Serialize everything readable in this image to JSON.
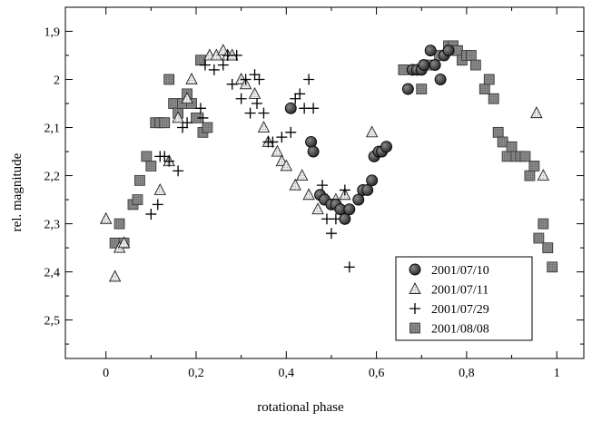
{
  "chart_data": {
    "type": "scatter",
    "title": "",
    "xlabel": "rotational phase",
    "ylabel": "rel. magnitude",
    "xlim": [
      -0.09,
      1.06
    ],
    "ylim": [
      1.85,
      2.58
    ],
    "y_inverted": true,
    "decimal_separator": ",",
    "x_ticks": [
      {
        "value": 0,
        "label": "0"
      },
      {
        "value": 0.2,
        "label": "0,2"
      },
      {
        "value": 0.4,
        "label": "0,4"
      },
      {
        "value": 0.6,
        "label": "0,6"
      },
      {
        "value": 0.8,
        "label": "0,8"
      },
      {
        "value": 1.0,
        "label": "1"
      }
    ],
    "y_ticks": [
      {
        "value": 1.9,
        "label": "1,9"
      },
      {
        "value": 2.0,
        "label": "2"
      },
      {
        "value": 2.1,
        "label": "2,1"
      },
      {
        "value": 2.2,
        "label": "2,2"
      },
      {
        "value": 2.3,
        "label": "2,3"
      },
      {
        "value": 2.4,
        "label": "2,4"
      },
      {
        "value": 2.5,
        "label": "2,5"
      }
    ],
    "grid": false,
    "legend_position": "bottom-right",
    "series": [
      {
        "name": "2001/07/10",
        "marker": "circle",
        "points": [
          [
            0.41,
            2.06
          ],
          [
            0.455,
            2.13
          ],
          [
            0.46,
            2.15
          ],
          [
            0.475,
            2.24
          ],
          [
            0.485,
            2.25
          ],
          [
            0.5,
            2.26
          ],
          [
            0.51,
            2.26
          ],
          [
            0.52,
            2.27
          ],
          [
            0.53,
            2.29
          ],
          [
            0.54,
            2.27
          ],
          [
            0.56,
            2.25
          ],
          [
            0.57,
            2.23
          ],
          [
            0.58,
            2.23
          ],
          [
            0.59,
            2.21
          ],
          [
            0.595,
            2.16
          ],
          [
            0.605,
            2.15
          ],
          [
            0.612,
            2.15
          ],
          [
            0.622,
            2.14
          ],
          [
            0.67,
            2.02
          ],
          [
            0.68,
            1.98
          ],
          [
            0.69,
            1.98
          ],
          [
            0.7,
            1.98
          ],
          [
            0.705,
            1.97
          ],
          [
            0.72,
            1.94
          ],
          [
            0.73,
            1.97
          ],
          [
            0.742,
            2.0
          ],
          [
            0.75,
            1.95
          ],
          [
            0.76,
            1.94
          ]
        ]
      },
      {
        "name": "2001/07/11",
        "marker": "triangle",
        "points": [
          [
            0.0,
            2.29
          ],
          [
            0.02,
            2.41
          ],
          [
            0.03,
            2.35
          ],
          [
            0.04,
            2.34
          ],
          [
            0.12,
            2.23
          ],
          [
            0.14,
            2.17
          ],
          [
            0.16,
            2.08
          ],
          [
            0.18,
            2.04
          ],
          [
            0.19,
            2.0
          ],
          [
            0.23,
            1.95
          ],
          [
            0.245,
            1.95
          ],
          [
            0.26,
            1.94
          ],
          [
            0.27,
            1.95
          ],
          [
            0.28,
            1.95
          ],
          [
            0.3,
            2.0
          ],
          [
            0.31,
            2.01
          ],
          [
            0.33,
            2.03
          ],
          [
            0.35,
            2.1
          ],
          [
            0.36,
            2.13
          ],
          [
            0.38,
            2.15
          ],
          [
            0.39,
            2.17
          ],
          [
            0.4,
            2.18
          ],
          [
            0.42,
            2.22
          ],
          [
            0.435,
            2.2
          ],
          [
            0.45,
            2.24
          ],
          [
            0.47,
            2.27
          ],
          [
            0.49,
            2.25
          ],
          [
            0.51,
            2.25
          ],
          [
            0.53,
            2.24
          ],
          [
            0.59,
            2.11
          ],
          [
            0.955,
            2.07
          ],
          [
            0.97,
            2.2
          ]
        ]
      },
      {
        "name": "2001/07/29",
        "marker": "plus",
        "points": [
          [
            0.1,
            2.28
          ],
          [
            0.115,
            2.26
          ],
          [
            0.12,
            2.16
          ],
          [
            0.13,
            2.16
          ],
          [
            0.14,
            2.17
          ],
          [
            0.16,
            2.19
          ],
          [
            0.17,
            2.1
          ],
          [
            0.18,
            2.09
          ],
          [
            0.21,
            2.06
          ],
          [
            0.215,
            2.08
          ],
          [
            0.22,
            1.97
          ],
          [
            0.24,
            1.98
          ],
          [
            0.26,
            1.97
          ],
          [
            0.27,
            1.95
          ],
          [
            0.28,
            2.01
          ],
          [
            0.29,
            1.95
          ],
          [
            0.3,
            2.04
          ],
          [
            0.31,
            2.0
          ],
          [
            0.32,
            2.07
          ],
          [
            0.33,
            1.99
          ],
          [
            0.335,
            2.05
          ],
          [
            0.34,
            2.0
          ],
          [
            0.35,
            2.07
          ],
          [
            0.36,
            2.13
          ],
          [
            0.37,
            2.13
          ],
          [
            0.39,
            2.12
          ],
          [
            0.41,
            2.11
          ],
          [
            0.42,
            2.04
          ],
          [
            0.43,
            2.03
          ],
          [
            0.44,
            2.06
          ],
          [
            0.45,
            2.0
          ],
          [
            0.46,
            2.06
          ],
          [
            0.48,
            2.22
          ],
          [
            0.49,
            2.29
          ],
          [
            0.5,
            2.32
          ],
          [
            0.51,
            2.29
          ],
          [
            0.53,
            2.23
          ],
          [
            0.54,
            2.39
          ]
        ]
      },
      {
        "name": "2001/08/08",
        "marker": "square",
        "points": [
          [
            0.02,
            2.34
          ],
          [
            0.03,
            2.3
          ],
          [
            0.04,
            2.34
          ],
          [
            0.06,
            2.26
          ],
          [
            0.07,
            2.25
          ],
          [
            0.075,
            2.21
          ],
          [
            0.09,
            2.16
          ],
          [
            0.1,
            2.18
          ],
          [
            0.11,
            2.09
          ],
          [
            0.12,
            2.09
          ],
          [
            0.13,
            2.09
          ],
          [
            0.14,
            2.0
          ],
          [
            0.15,
            2.05
          ],
          [
            0.16,
            2.07
          ],
          [
            0.17,
            2.05
          ],
          [
            0.18,
            2.03
          ],
          [
            0.19,
            2.05
          ],
          [
            0.2,
            2.08
          ],
          [
            0.21,
            1.96
          ],
          [
            0.215,
            2.11
          ],
          [
            0.225,
            2.1
          ],
          [
            0.66,
            1.98
          ],
          [
            0.7,
            2.02
          ],
          [
            0.72,
            1.97
          ],
          [
            0.74,
            1.95
          ],
          [
            0.76,
            1.93
          ],
          [
            0.77,
            1.93
          ],
          [
            0.78,
            1.94
          ],
          [
            0.79,
            1.96
          ],
          [
            0.8,
            1.95
          ],
          [
            0.81,
            1.95
          ],
          [
            0.82,
            1.97
          ],
          [
            0.84,
            2.02
          ],
          [
            0.85,
            2.0
          ],
          [
            0.86,
            2.04
          ],
          [
            0.87,
            2.11
          ],
          [
            0.88,
            2.13
          ],
          [
            0.89,
            2.16
          ],
          [
            0.9,
            2.14
          ],
          [
            0.91,
            2.16
          ],
          [
            0.92,
            2.16
          ],
          [
            0.93,
            2.16
          ],
          [
            0.94,
            2.2
          ],
          [
            0.95,
            2.18
          ],
          [
            0.96,
            2.33
          ],
          [
            0.97,
            2.3
          ],
          [
            0.98,
            2.35
          ],
          [
            0.99,
            2.39
          ]
        ]
      }
    ]
  }
}
